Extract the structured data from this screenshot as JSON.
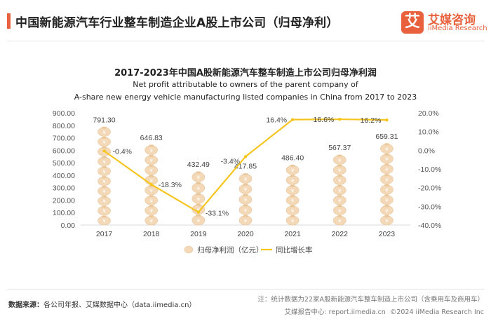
{
  "header": {
    "page_title": "中国新能源汽车行业整车制造企业A股上市公司（归母净利）",
    "logo_box": "艾",
    "logo_cn": "艾媒咨询",
    "logo_en": "iiMedia Research"
  },
  "chart_data": {
    "type": "bar",
    "title": "2017-2023年中国A股新能源汽车整车制造上市公司归母净利润",
    "subtitle_line1": "Net profit attributable to owners of the parent company of",
    "subtitle_line2": "A-share new energy vehicle manufacturing listed companies in China from 2017 to 2023",
    "categories": [
      "2017",
      "2018",
      "2019",
      "2020",
      "2021",
      "2022",
      "2023"
    ],
    "series": [
      {
        "name": "归母净利润（亿元）",
        "type": "bar",
        "axis": "left",
        "values": [
          791.3,
          646.83,
          432.49,
          417.85,
          486.4,
          567.37,
          659.31
        ],
        "labels": [
          "791.30",
          "646.83",
          "432.49",
          "417.85",
          "486.40",
          "567.37",
          "659.31"
        ],
        "color": "#f3d9b8"
      },
      {
        "name": "同比增长率",
        "type": "line",
        "axis": "right",
        "values": [
          -0.4,
          -18.3,
          -33.1,
          -3.4,
          16.4,
          16.6,
          16.2
        ],
        "labels": [
          "-0.4%",
          "-18.3%",
          "-33.1%",
          "-3.4%",
          "16.4%",
          "16.6%",
          "16.2%"
        ],
        "color": "#f7c51f"
      }
    ],
    "ylim_left": [
      0,
      900
    ],
    "ylim_right": [
      -40,
      20
    ],
    "left_ticks": [
      "0.00",
      "100.00",
      "200.00",
      "300.00",
      "400.00",
      "500.00",
      "600.00",
      "700.00",
      "800.00",
      "900.00"
    ],
    "right_ticks": [
      "-40.0%",
      "-30.0%",
      "-20.0%",
      "-10.0%",
      "0.0%",
      "10.0%",
      "20.0%"
    ],
    "legend": {
      "position": "bottom-center"
    }
  },
  "footer": {
    "source_label": "数据来源：",
    "source_text": "各公司年报、艾媒数据中心（data.iimedia.cn）",
    "note": "注：统计数据为22家A股新能源汽车整车制造上市公司（含乘用车及商用车）",
    "report_center": "艾媒报告中心: report.iimedia.cn",
    "copyright": "©2024  iiMedia Research  Inc"
  },
  "colors": {
    "accent": "#e8603c",
    "bar": "#f3d9b8",
    "line": "#f7c51f"
  }
}
